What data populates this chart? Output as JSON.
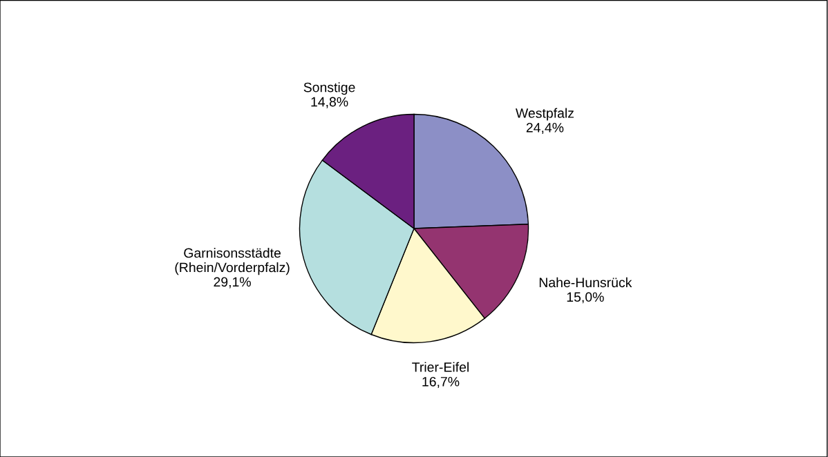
{
  "chart_data": {
    "type": "pie",
    "categories": [
      "Westpfalz",
      "Nahe-Hunsrück",
      "Trier-Eifel",
      "Garnisonsstädte\n(Rhein/Vorderpfalz)",
      "Sonstige"
    ],
    "values": [
      24.4,
      15.0,
      16.7,
      29.1,
      14.8
    ],
    "value_labels": [
      "24,4%",
      "15,0%",
      "16,7%",
      "29,1%",
      "14,8%"
    ],
    "colors": [
      "#8c8fc6",
      "#943470",
      "#fff8cc",
      "#b5dfdf",
      "#6b2080"
    ],
    "legend": false
  }
}
